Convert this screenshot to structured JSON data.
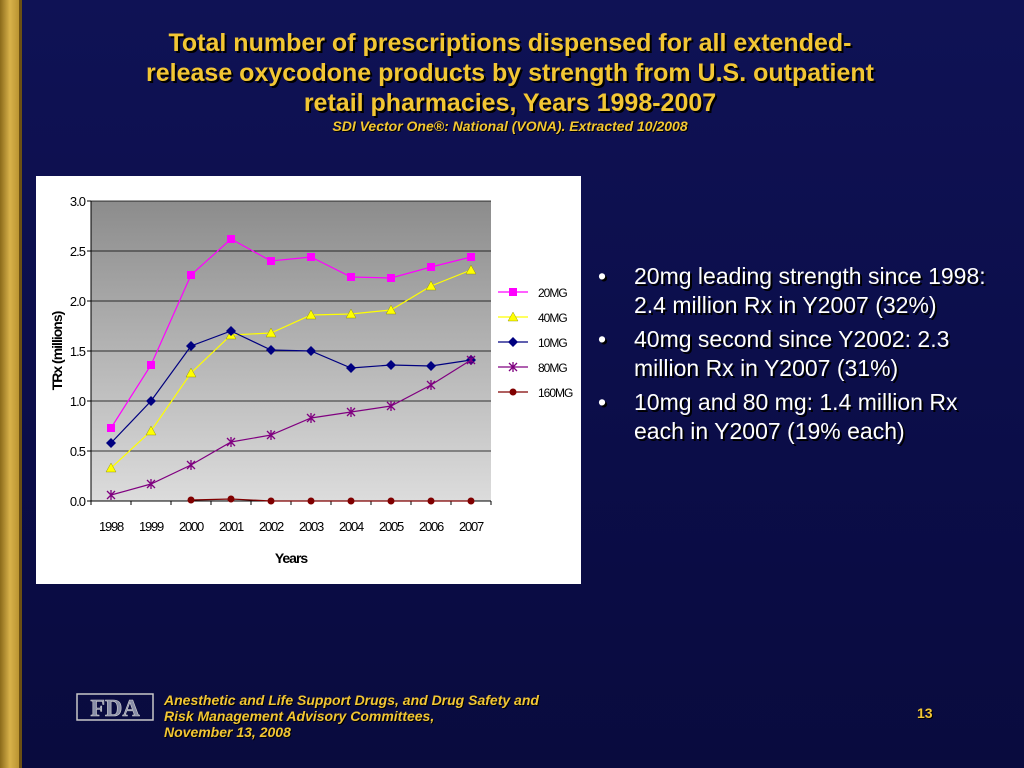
{
  "slide": {
    "title_lines": [
      "Total number of prescriptions dispensed for all extended-",
      "release oxycodone products by strength from U.S. outpatient",
      "retail pharmacies, Years 1998-2007"
    ],
    "subtitle": "SDI Vector One®: National (VONA).  Extracted 10/2008",
    "bullets": [
      "20mg leading strength since 1998: 2.4 million Rx in Y2007 (32%)",
      "40mg second since Y2002: 2.3 million Rx in Y2007 (31%)",
      "10mg and 80 mg: 1.4 million Rx each in Y2007 (19% each)"
    ],
    "footer_lines": [
      "Anesthetic and Life Support Drugs, and Drug Safety and",
      "Risk Management Advisory Committees,",
      "November 13, 2008"
    ],
    "logo_text": "FDA",
    "page_number": "13"
  },
  "chart_data": {
    "type": "line",
    "title": "",
    "xlabel": "Years",
    "ylabel": "TRx (millions)",
    "ylim": [
      0,
      3.0
    ],
    "yticks": [
      "0.0",
      "0.5",
      "1.0",
      "1.5",
      "2.0",
      "2.5",
      "3.0"
    ],
    "categories": [
      "1998",
      "1999",
      "2000",
      "2001",
      "2002",
      "2003",
      "2004",
      "2005",
      "2006",
      "2007"
    ],
    "grid": true,
    "legend_position": "right",
    "series": [
      {
        "name": "20MG",
        "color": "#ff00ff",
        "marker": "square",
        "values": [
          0.73,
          1.36,
          2.26,
          2.62,
          2.4,
          2.44,
          2.24,
          2.23,
          2.34,
          2.44
        ]
      },
      {
        "name": "40MG",
        "color": "#ffff00",
        "marker": "triangle",
        "values": [
          0.33,
          0.7,
          1.28,
          1.66,
          1.68,
          1.86,
          1.87,
          1.91,
          2.15,
          2.31
        ]
      },
      {
        "name": "10MG",
        "color": "#000080",
        "marker": "diamond",
        "values": [
          0.58,
          1.0,
          1.55,
          1.7,
          1.51,
          1.5,
          1.33,
          1.36,
          1.35,
          1.41
        ]
      },
      {
        "name": "80MG",
        "color": "#800080",
        "marker": "star",
        "values": [
          0.06,
          0.17,
          0.36,
          0.59,
          0.66,
          0.83,
          0.89,
          0.95,
          1.16,
          1.41
        ]
      },
      {
        "name": "160MG",
        "color": "#800000",
        "marker": "circle",
        "values": [
          null,
          null,
          0.01,
          0.02,
          0.0,
          0.0,
          0.0,
          0.0,
          0.0,
          0.0
        ]
      }
    ]
  }
}
